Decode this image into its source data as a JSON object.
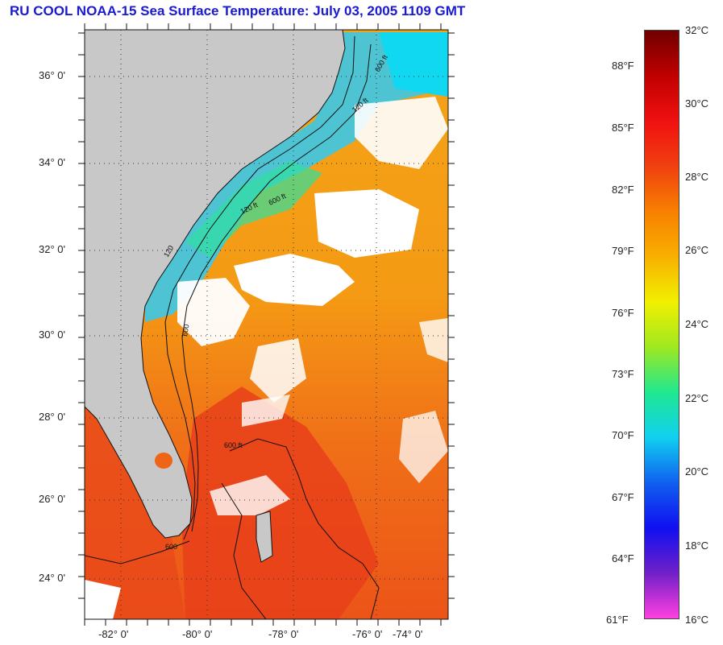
{
  "title": "RU COOL  NOAA-15  Sea Surface Temperature:  July 03, 2005 1109 GMT",
  "map": {
    "lat_labels": [
      "36° 0'",
      "34° 0'",
      "32° 0'",
      "30° 0'",
      "28° 0'",
      "26° 0'",
      "24° 0'"
    ],
    "lon_labels": [
      "-82° 0'",
      "-80° 0'",
      "-78° 0'",
      "-76° 0'",
      "-74° 0'"
    ],
    "isobath_labels": [
      "120 ft",
      "600 ft",
      "120 ft",
      "600 ft",
      "120",
      "600",
      "600 ft",
      "600"
    ],
    "colors": {
      "land": "#c8c8c8",
      "cloud": "#ffffff",
      "warm_ocean": "#f08a10",
      "hot_ocean": "#e82810",
      "cool_shelf": "#30c8e8"
    }
  },
  "colorbar": {
    "celsius_labels": [
      "32°C",
      "30°C",
      "28°C",
      "26°C",
      "24°C",
      "22°C",
      "20°C",
      "18°C",
      "16°C"
    ],
    "fahrenheit_labels": [
      "88°F",
      "85°F",
      "82°F",
      "79°F",
      "76°F",
      "73°F",
      "70°F",
      "67°F",
      "64°F",
      "61°F"
    ],
    "range_c": [
      16,
      32
    ],
    "colors": [
      "#ff40e0",
      "#7020c8",
      "#1010f0",
      "#1060f0",
      "#10d0f0",
      "#20e890",
      "#a0e820",
      "#f0f000",
      "#f8b000",
      "#f88000",
      "#f04010",
      "#f01010",
      "#c00000",
      "#700000"
    ]
  }
}
